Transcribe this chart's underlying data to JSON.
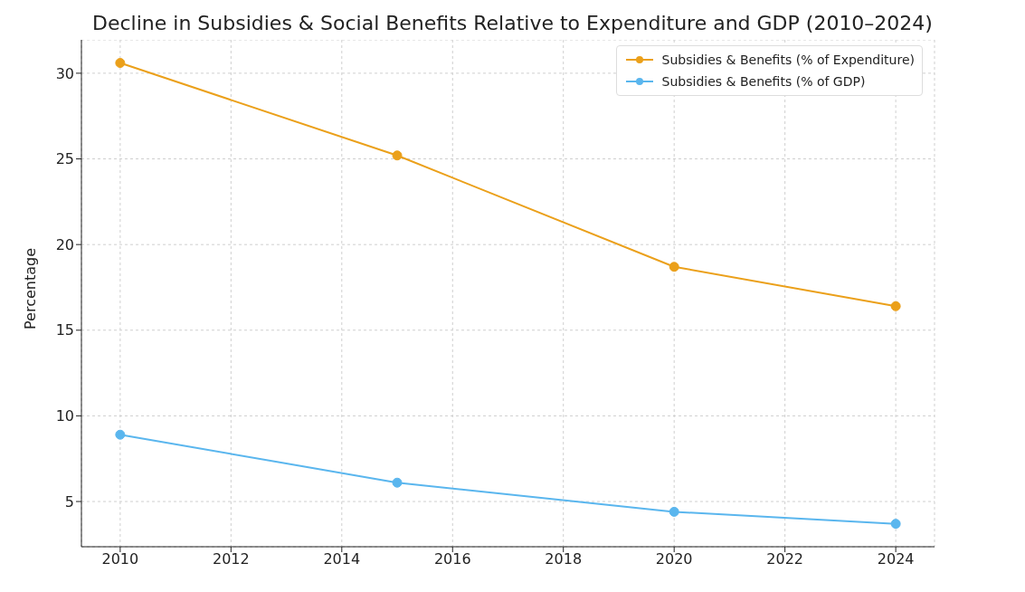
{
  "chart_data": {
    "type": "line",
    "title": "Decline in Subsidies & Social Benefits Relative to Expenditure and GDP (2010–2024)",
    "ylabel": "Percentage",
    "x": [
      2010,
      2015,
      2020,
      2024
    ],
    "series": [
      {
        "name": "Subsidies & Benefits (% of Expenditure)",
        "color": "#eba01a",
        "values": [
          30.6,
          25.2,
          18.7,
          16.4
        ]
      },
      {
        "name": "Subsidies & Benefits (% of GDP)",
        "color": "#5ab6ee",
        "values": [
          8.9,
          6.1,
          4.4,
          3.7
        ]
      }
    ],
    "xlim": [
      2009.3,
      2024.7
    ],
    "xticks": [
      2010,
      2012,
      2014,
      2016,
      2018,
      2020,
      2022,
      2024
    ],
    "ylim": [
      2.36,
      31.95
    ],
    "yticks": [
      5,
      10,
      15,
      20,
      25,
      30
    ],
    "grid": true,
    "legend": "top right",
    "marker": "circle",
    "line_style": "solid"
  }
}
